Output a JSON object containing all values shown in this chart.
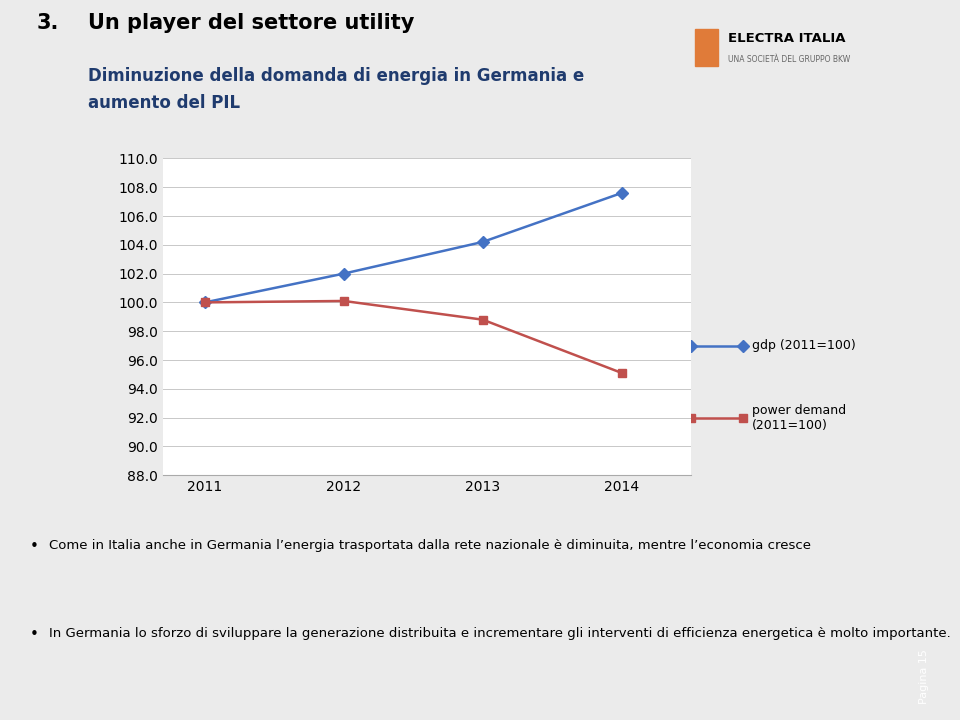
{
  "title_number": "3.",
  "title_main": "Un player del settore utility",
  "title_sub": "Diminuzione della domanda di energia in Germania e\naumento del PIL",
  "years": [
    2011,
    2012,
    2013,
    2014
  ],
  "gdp": [
    100.0,
    102.0,
    104.2,
    107.6
  ],
  "power_demand": [
    100.0,
    100.1,
    98.8,
    95.1
  ],
  "gdp_color": "#4472C4",
  "power_color": "#C0504D",
  "ylim_min": 88.0,
  "ylim_max": 110.0,
  "yticks": [
    88.0,
    90.0,
    92.0,
    94.0,
    96.0,
    98.0,
    100.0,
    102.0,
    104.0,
    106.0,
    108.0,
    110.0
  ],
  "legend_gdp": "gdp (2011=100)",
  "legend_power": "power demand\n(2011=100)",
  "bg_color": "#EBEBEB",
  "plot_bg": "#FFFFFF",
  "header_bg": "#D9D9D9",
  "orange_accent": "#E07B39",
  "bullet1": "Come in Italia anche in Germania l’energia trasportata dalla rete nazionale è diminuita, mentre l’economia cresce",
  "bullet2": "In Germania lo sforzo di sviluppare la generazione distribuita e incrementare gli interventi di efficienza energetica è molto importante.",
  "electra_text": "ELECTRA ITALIA",
  "electra_sub": "UNA SOCIETÀ DEL GRUPPO BKW",
  "page_text": "Pagina 15",
  "german_flag_colors": [
    "#000000",
    "#CC0000",
    "#FFCE00"
  ]
}
